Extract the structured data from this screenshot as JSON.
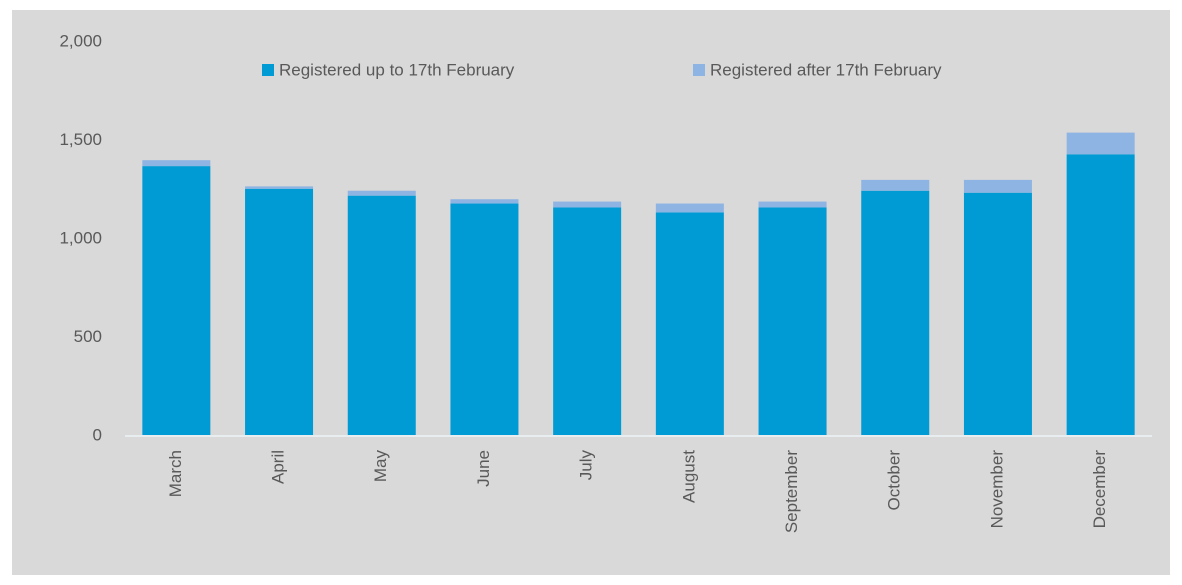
{
  "chart_data": {
    "type": "stacked_bar",
    "categories": [
      "March",
      "April",
      "May",
      "June",
      "July",
      "August",
      "September",
      "October",
      "November",
      "December"
    ],
    "series": [
      {
        "name": "Registered up to 17th February",
        "color": "#009bd4",
        "values": [
          1370,
          1255,
          1220,
          1180,
          1160,
          1135,
          1160,
          1245,
          1235,
          1430
        ]
      },
      {
        "name": "Registered after 17th February",
        "color": "#8db4e2",
        "values": [
          30,
          12,
          25,
          22,
          30,
          45,
          30,
          55,
          65,
          110
        ]
      }
    ],
    "ylim": [
      0,
      2000
    ],
    "yticks": [
      0,
      {
        "value": 500,
        "label": "500"
      },
      {
        "value": 1000,
        "label": "1,000"
      },
      {
        "value": 1500,
        "label": "1,500"
      },
      {
        "value": 2000,
        "label": "2,000"
      }
    ],
    "legend": "top"
  }
}
